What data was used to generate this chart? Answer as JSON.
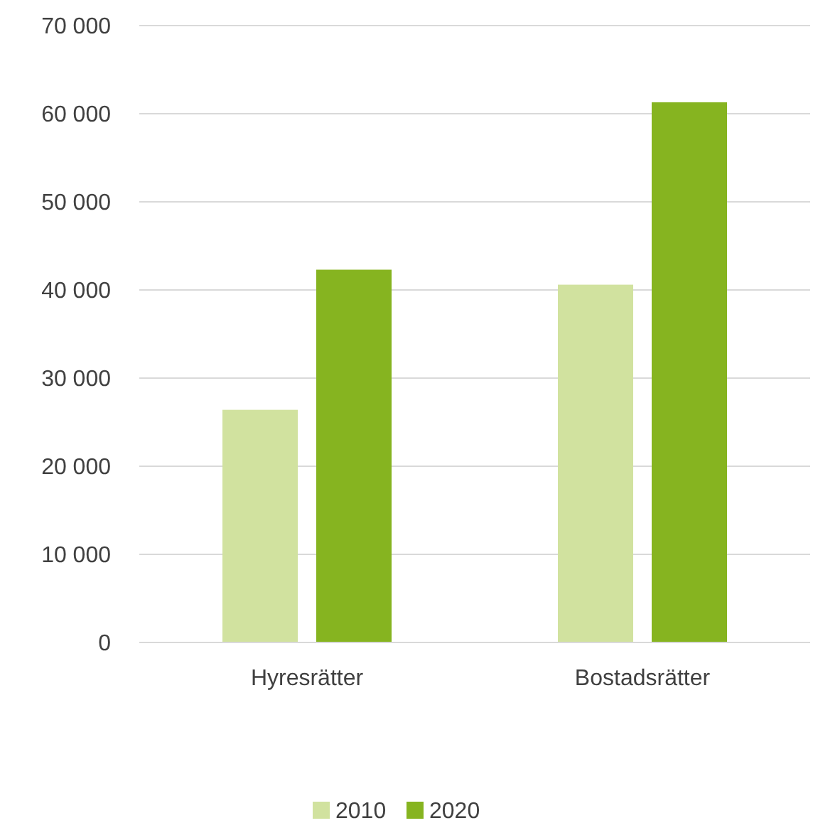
{
  "chart_data": {
    "type": "bar",
    "categories": [
      "Hyresrätter",
      "Bostadsrätter"
    ],
    "series": [
      {
        "name": "2010",
        "color": "#d1e29f",
        "values": [
          26400,
          40600
        ]
      },
      {
        "name": "2020",
        "color": "#86b420",
        "values": [
          42300,
          61300
        ]
      }
    ],
    "ylim": [
      0,
      70000
    ],
    "yticks": [
      {
        "value": 0,
        "label": "0"
      },
      {
        "value": 10000,
        "label": "10 000"
      },
      {
        "value": 20000,
        "label": "20 000"
      },
      {
        "value": 30000,
        "label": "30 000"
      },
      {
        "value": 40000,
        "label": "40 000"
      },
      {
        "value": 50000,
        "label": "50 000"
      },
      {
        "value": 60000,
        "label": "60 000"
      },
      {
        "value": 70000,
        "label": "70 000"
      }
    ],
    "grid": "y",
    "legend": "bottom"
  }
}
